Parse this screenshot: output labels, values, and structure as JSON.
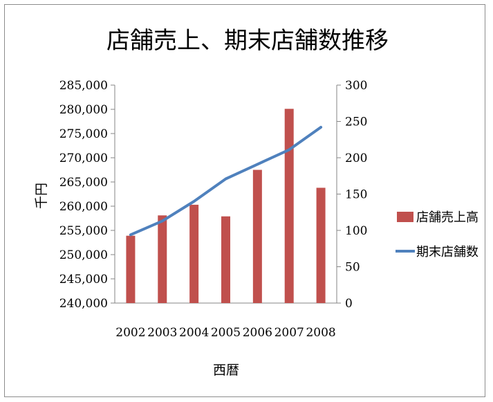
{
  "chart_data": {
    "type": "bar",
    "title": "店舗売上、期末店舗数推移",
    "xlabel": "西暦",
    "ylabel": "千円",
    "y2label": "",
    "categories": [
      "2002",
      "2003",
      "2004",
      "2005",
      "2006",
      "2007",
      "2008"
    ],
    "ylim": [
      240000,
      285000
    ],
    "y_ticks": [
      "240,000",
      "245,000",
      "250,000",
      "255,000",
      "260,000",
      "265,000",
      "270,000",
      "275,000",
      "280,000",
      "285,000"
    ],
    "y2lim": [
      0,
      300
    ],
    "y2_ticks": [
      "0",
      "50",
      "100",
      "150",
      "200",
      "250",
      "300"
    ],
    "grid": false,
    "legend": "right",
    "series": [
      {
        "name": "店舗売上高",
        "type": "bar",
        "axis": "left",
        "color": "#c0504d",
        "values": [
          253900,
          258100,
          260300,
          257900,
          267500,
          280100,
          263800
        ]
      },
      {
        "name": "期末店舗数",
        "type": "line",
        "axis": "right",
        "color": "#4f81bd",
        "values": [
          94,
          113,
          140,
          171,
          191,
          211,
          242
        ]
      }
    ]
  }
}
